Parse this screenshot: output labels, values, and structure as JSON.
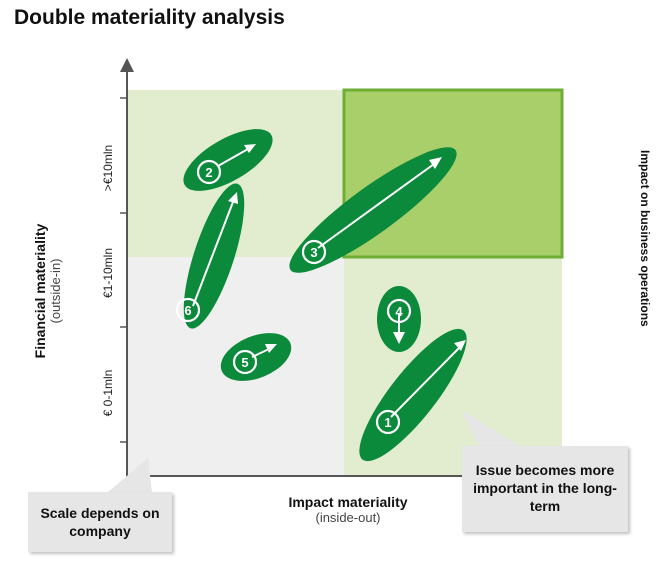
{
  "title": "Double materiality analysis",
  "y_axis": {
    "title": "Financial materiality",
    "subtitle": "(outside-in)",
    "ticks": [
      ">€10mln",
      "€1-10mln",
      "€ 0-1mln"
    ]
  },
  "x_axis": {
    "title": "Impact materiality",
    "subtitle": "(inside-out)"
  },
  "right_axis_label": "Impact on business operations",
  "callouts": {
    "left": "Scale depends on company",
    "right": "Issue becomes more important in the long-term"
  },
  "issues": [
    {
      "id": "1",
      "label": "1",
      "direction": "up-right"
    },
    {
      "id": "2",
      "label": "2",
      "direction": "right"
    },
    {
      "id": "3",
      "label": "3",
      "direction": "up-right"
    },
    {
      "id": "4",
      "label": "4",
      "direction": "down"
    },
    {
      "id": "5",
      "label": "5",
      "direction": "right"
    },
    {
      "id": "6",
      "label": "6",
      "direction": "up"
    }
  ],
  "colors": {
    "quadrant_light": "#e2edcf",
    "quadrant_gray": "#efefef",
    "highlight_fill": "#a9cf6b",
    "highlight_border": "#6fae34",
    "bubble": "#0a8a3a",
    "axis": "#555555"
  }
}
